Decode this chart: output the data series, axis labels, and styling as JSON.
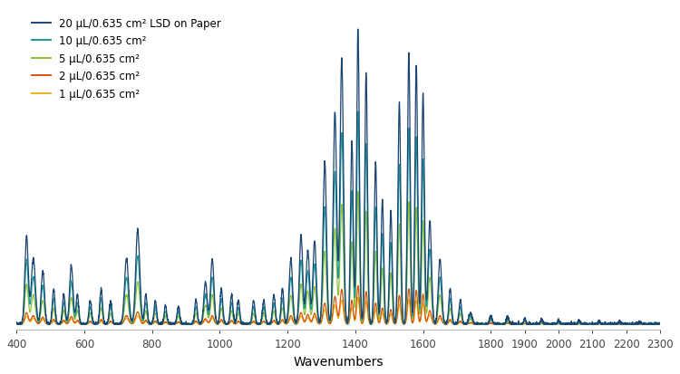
{
  "title": "",
  "xlabel": "Wavenumbers",
  "ylabel": "",
  "xlim": [
    400,
    2300
  ],
  "ylim": [
    -0.02,
    1.08
  ],
  "colors": {
    "20uL": "#1a4472",
    "10uL": "#1a9a9a",
    "5uL": "#90c030",
    "2uL": "#d85010",
    "1uL": "#e8b818"
  },
  "legend_labels": [
    "20 μL/0.635 cm² LSD on Paper",
    "10 μL/0.635 cm²",
    "5 μL/0.635 cm²",
    "2 μL/0.635 cm²",
    "1 μL/0.635 cm²"
  ],
  "xticks": [
    400,
    600,
    800,
    1000,
    1200,
    1400,
    1600,
    1800,
    1900,
    2000,
    2100,
    2200,
    2300
  ],
  "background_color": "#ffffff",
  "linewidth": 0.9,
  "scales": [
    1.0,
    0.72,
    0.45,
    0.13,
    0.09
  ]
}
